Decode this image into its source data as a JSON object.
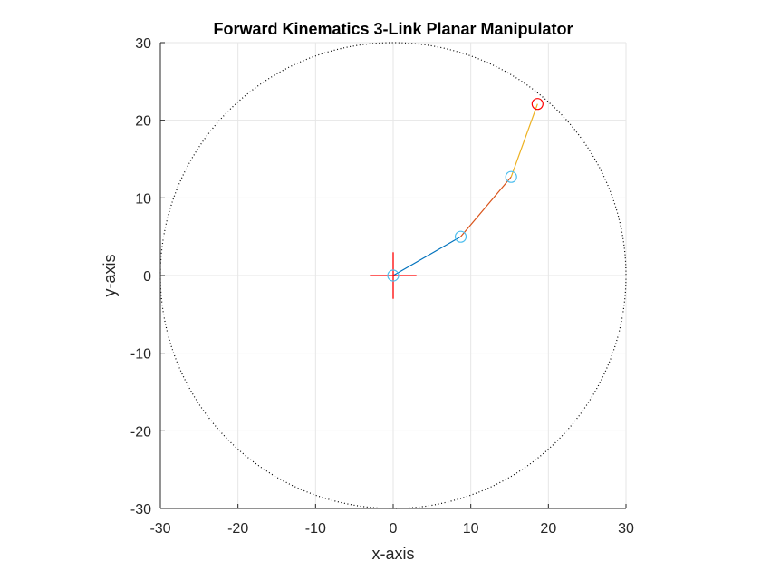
{
  "chart_data": {
    "type": "line",
    "title": "Forward Kinematics 3-Link Planar Manipulator",
    "xlabel": "x-axis",
    "ylabel": "y-axis",
    "xlim": [
      -30,
      30
    ],
    "ylim": [
      -30,
      30
    ],
    "xticks": [
      -30,
      -20,
      -10,
      0,
      10,
      20,
      30
    ],
    "yticks": [
      -30,
      -20,
      -10,
      0,
      10,
      20,
      30
    ],
    "grid": true,
    "aspect": "equal",
    "workspace_circle": {
      "center": [
        0,
        0
      ],
      "radius": 30,
      "style": "dotted",
      "color": "#000000"
    },
    "base_marker": {
      "x": 0,
      "y": 0,
      "marker": "plus",
      "half_length": 3,
      "color": "#ff0000"
    },
    "links": [
      {
        "from": [
          0,
          0
        ],
        "to": [
          8.7,
          5.0
        ],
        "color": "#0072bd"
      },
      {
        "from": [
          8.7,
          5.0
        ],
        "to": [
          15.2,
          12.7
        ],
        "color": "#d95319"
      },
      {
        "from": [
          15.2,
          12.7
        ],
        "to": [
          18.6,
          22.1
        ],
        "color": "#edb120"
      }
    ],
    "joints": [
      {
        "x": 0,
        "y": 0,
        "color": "#4dbeee"
      },
      {
        "x": 8.7,
        "y": 5.0,
        "color": "#4dbeee"
      },
      {
        "x": 15.2,
        "y": 12.7,
        "color": "#4dbeee"
      }
    ],
    "end_effector": {
      "x": 18.6,
      "y": 22.1,
      "color": "#ff0000"
    }
  }
}
